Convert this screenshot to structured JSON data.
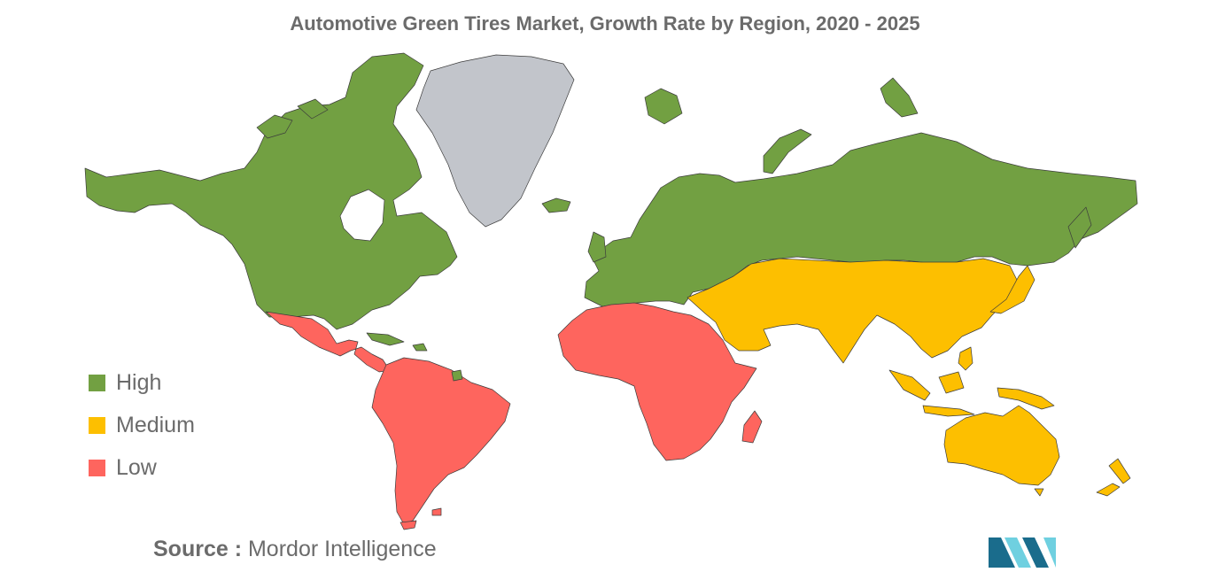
{
  "title": "Automotive Green Tires Market, Growth Rate by Region, 2020 - 2025",
  "legend": {
    "high": {
      "label": "High",
      "color": "#72a042"
    },
    "medium": {
      "label": "Medium",
      "color": "#fdbf00"
    },
    "low": {
      "label": "Low",
      "color": "#fe655e"
    }
  },
  "no_data_color": "#c2c5cb",
  "regions": [
    {
      "name": "North America",
      "level": "high"
    },
    {
      "name": "Europe",
      "level": "high"
    },
    {
      "name": "Russia",
      "level": "high"
    },
    {
      "name": "Greenland",
      "level": "none"
    },
    {
      "name": "Mexico and Central America",
      "level": "low"
    },
    {
      "name": "South America",
      "level": "low"
    },
    {
      "name": "Africa",
      "level": "low"
    },
    {
      "name": "Middle East and Asia",
      "level": "medium"
    },
    {
      "name": "Southeast Asia",
      "level": "medium"
    },
    {
      "name": "Australia and Oceania",
      "level": "medium"
    }
  ],
  "source": {
    "prefix": "Source :",
    "text": "Mordor Intelligence"
  },
  "logo_colors": {
    "dark": "#1a6c8c",
    "light": "#6fd0e0"
  }
}
